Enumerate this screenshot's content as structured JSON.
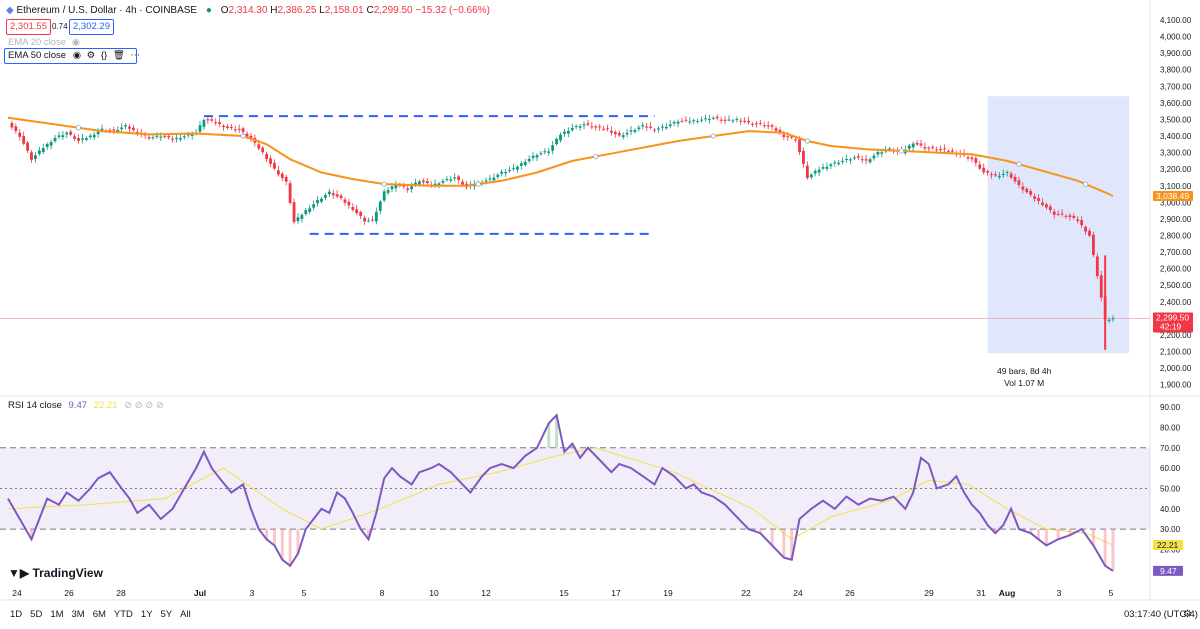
{
  "header": {
    "symbol": "Ethereum / U.S. Dollar · 4h · COINBASE",
    "ohlc": {
      "o_label": "O",
      "o": "2,314.30",
      "h_label": "H",
      "h": "2,386.25",
      "l_label": "L",
      "l": "2,158.01",
      "c_label": "C",
      "c": "2,299.50",
      "change": "−15.32 (−0.66%)"
    },
    "sell_price": "2,301.55",
    "spread": "0.74",
    "buy_price": "2,302.29"
  },
  "indicators": {
    "ema20": "EMA 20 close",
    "ema50": "EMA 50 close",
    "rsi": "RSI 14 close",
    "rsi_value": "9.47",
    "rsi_ma_value": "22.21"
  },
  "price_axis_labels": {
    "ema_last": "3,038.49",
    "last_price": "2,299.50",
    "countdown": "42:19",
    "rsi_ma": "22.21",
    "rsi": "9.47"
  },
  "measure_box": {
    "line1": "49 bars, 8d 4h",
    "line2": "Vol 1.07 M"
  },
  "footer": {
    "ranges": [
      "1D",
      "5D",
      "1M",
      "3M",
      "6M",
      "YTD",
      "1Y",
      "5Y",
      "All"
    ],
    "clock": "03:17:40 (UTC-4)",
    "brand": "TradingView"
  },
  "colors": {
    "up": "#089981",
    "down": "#f23645",
    "ema": "#f7931a",
    "rsi": "#7e57c2",
    "rsi_ma": "#f5e04a",
    "range_line": "#2962ff",
    "measure_fill": "#dbe3fd"
  },
  "chart_data": [
    {
      "type": "candlestick",
      "title": "Ethereum / U.S. Dollar · 4h · COINBASE",
      "y_ticks": [
        1900,
        2000,
        2100,
        2200,
        2300,
        2400,
        2500,
        2600,
        2700,
        2800,
        2900,
        3000,
        3100,
        3200,
        3300,
        3400,
        3500,
        3600,
        3700,
        3800,
        3900,
        4000,
        4100
      ],
      "y_tick_labels": [
        "1,900.00",
        "2,000.00",
        "2,100.00",
        "2,200.00",
        "2,300.00",
        "2,400.00",
        "2,500.00",
        "2,600.00",
        "2,700.00",
        "2,800.00",
        "2,900.00",
        "3,000.00",
        "3,100.00",
        "3,200.00",
        "3,300.00",
        "3,400.00",
        "3,500.00",
        "3,600.00",
        "3,700.00",
        "3,800.00",
        "3,900.00",
        "4,000.00",
        "4,100.00"
      ],
      "ylim": [
        1850,
        4130
      ],
      "x_tick_labels": [
        "24",
        "26",
        "28",
        "Jul",
        "3",
        "5",
        "8",
        "10",
        "12",
        "15",
        "17",
        "19",
        "22",
        "24",
        "26",
        "29",
        "31",
        "Aug",
        "3",
        "5"
      ],
      "close_path": [
        [
          0,
          3480
        ],
        [
          3,
          3400
        ],
        [
          6,
          3260
        ],
        [
          9,
          3330
        ],
        [
          12,
          3390
        ],
        [
          15,
          3420
        ],
        [
          18,
          3370
        ],
        [
          21,
          3400
        ],
        [
          24,
          3440
        ],
        [
          27,
          3430
        ],
        [
          30,
          3460
        ],
        [
          33,
          3420
        ],
        [
          36,
          3390
        ],
        [
          39,
          3400
        ],
        [
          42,
          3380
        ],
        [
          45,
          3400
        ],
        [
          48,
          3420
        ],
        [
          50,
          3500
        ],
        [
          53,
          3480
        ],
        [
          56,
          3450
        ],
        [
          59,
          3440
        ],
        [
          62,
          3380
        ],
        [
          65,
          3300
        ],
        [
          68,
          3200
        ],
        [
          71,
          3120
        ],
        [
          73,
          2880
        ],
        [
          76,
          2950
        ],
        [
          79,
          3010
        ],
        [
          82,
          3060
        ],
        [
          85,
          3020
        ],
        [
          88,
          2960
        ],
        [
          91,
          2890
        ],
        [
          93,
          2890
        ],
        [
          96,
          3060
        ],
        [
          99,
          3110
        ],
        [
          102,
          3080
        ],
        [
          105,
          3130
        ],
        [
          108,
          3100
        ],
        [
          111,
          3130
        ],
        [
          114,
          3150
        ],
        [
          117,
          3090
        ],
        [
          120,
          3120
        ],
        [
          123,
          3140
        ],
        [
          126,
          3180
        ],
        [
          129,
          3200
        ],
        [
          132,
          3250
        ],
        [
          135,
          3290
        ],
        [
          138,
          3310
        ],
        [
          141,
          3410
        ],
        [
          144,
          3450
        ],
        [
          147,
          3470
        ],
        [
          150,
          3450
        ],
        [
          153,
          3440
        ],
        [
          156,
          3400
        ],
        [
          159,
          3430
        ],
        [
          162,
          3460
        ],
        [
          165,
          3440
        ],
        [
          168,
          3460
        ],
        [
          171,
          3490
        ],
        [
          174,
          3490
        ],
        [
          177,
          3500
        ],
        [
          180,
          3510
        ],
        [
          183,
          3490
        ],
        [
          186,
          3500
        ],
        [
          189,
          3480
        ],
        [
          192,
          3470
        ],
        [
          195,
          3450
        ],
        [
          198,
          3400
        ],
        [
          201,
          3380
        ],
        [
          204,
          3150
        ],
        [
          207,
          3200
        ],
        [
          210,
          3230
        ],
        [
          213,
          3250
        ],
        [
          216,
          3270
        ],
        [
          219,
          3250
        ],
        [
          222,
          3300
        ],
        [
          225,
          3320
        ],
        [
          228,
          3300
        ],
        [
          231,
          3360
        ],
        [
          234,
          3330
        ],
        [
          237,
          3320
        ],
        [
          240,
          3310
        ],
        [
          243,
          3290
        ],
        [
          246,
          3260
        ],
        [
          249,
          3180
        ],
        [
          252,
          3160
        ],
        [
          255,
          3180
        ],
        [
          258,
          3100
        ],
        [
          261,
          3040
        ],
        [
          264,
          2990
        ],
        [
          267,
          2930
        ],
        [
          270,
          2920
        ],
        [
          273,
          2890
        ],
        [
          276,
          2800
        ],
        [
          278,
          2560
        ],
        [
          280,
          2290
        ],
        [
          282,
          2300
        ]
      ],
      "series": [
        {
          "name": "EMA 50 close",
          "points": [
            [
              0,
              3510
            ],
            [
              12,
              3470
            ],
            [
              24,
              3430
            ],
            [
              36,
              3410
            ],
            [
              48,
              3415
            ],
            [
              60,
              3400
            ],
            [
              66,
              3350
            ],
            [
              72,
              3260
            ],
            [
              80,
              3180
            ],
            [
              88,
              3140
            ],
            [
              96,
              3110
            ],
            [
              108,
              3100
            ],
            [
              117,
              3100
            ],
            [
              126,
              3130
            ],
            [
              135,
              3180
            ],
            [
              144,
              3250
            ],
            [
              153,
              3290
            ],
            [
              162,
              3330
            ],
            [
              171,
              3370
            ],
            [
              180,
              3400
            ],
            [
              189,
              3430
            ],
            [
              198,
              3420
            ],
            [
              204,
              3370
            ],
            [
              210,
              3340
            ],
            [
              219,
              3320
            ],
            [
              228,
              3310
            ],
            [
              237,
              3300
            ],
            [
              246,
              3290
            ],
            [
              255,
              3250
            ],
            [
              264,
              3190
            ],
            [
              273,
              3130
            ],
            [
              280,
              3060
            ],
            [
              282,
              3038
            ]
          ]
        }
      ],
      "annotations": {
        "upper_range_line": 3520,
        "lower_range_line": 2810,
        "measure_y_top": 3640,
        "measure_y_bottom": 2090
      }
    },
    {
      "type": "line",
      "title": "RSI 14 close",
      "y_ticks": [
        10,
        20,
        30,
        40,
        50,
        60,
        70,
        80,
        90
      ],
      "y_tick_labels": [
        "10.00",
        "20.00",
        "30.00",
        "40.00",
        "50.00",
        "60.00",
        "70.00",
        "80.00",
        "90.00"
      ],
      "ylim": [
        5,
        92
      ],
      "bands": {
        "upper": 70,
        "middle": 50,
        "lower": 30
      },
      "series": [
        {
          "name": "RSI 14 close",
          "points": [
            [
              0,
              45
            ],
            [
              3,
              35
            ],
            [
              6,
              25
            ],
            [
              8,
              35
            ],
            [
              10,
              45
            ],
            [
              13,
              42
            ],
            [
              15,
              48
            ],
            [
              18,
              44
            ],
            [
              21,
              50
            ],
            [
              23,
              55
            ],
            [
              26,
              58
            ],
            [
              29,
              50
            ],
            [
              31,
              45
            ],
            [
              33,
              38
            ],
            [
              36,
              42
            ],
            [
              39,
              35
            ],
            [
              42,
              40
            ],
            [
              45,
              50
            ],
            [
              48,
              60
            ],
            [
              50,
              68
            ],
            [
              52,
              60
            ],
            [
              54,
              55
            ],
            [
              57,
              48
            ],
            [
              60,
              52
            ],
            [
              62,
              40
            ],
            [
              64,
              30
            ],
            [
              66,
              25
            ],
            [
              68,
              22
            ],
            [
              70,
              15
            ],
            [
              72,
              12
            ],
            [
              74,
              18
            ],
            [
              76,
              30
            ],
            [
              78,
              35
            ],
            [
              80,
              40
            ],
            [
              82,
              38
            ],
            [
              84,
              48
            ],
            [
              86,
              45
            ],
            [
              88,
              38
            ],
            [
              90,
              30
            ],
            [
              92,
              25
            ],
            [
              94,
              38
            ],
            [
              96,
              55
            ],
            [
              98,
              60
            ],
            [
              100,
              56
            ],
            [
              103,
              52
            ],
            [
              105,
              58
            ],
            [
              108,
              60
            ],
            [
              110,
              62
            ],
            [
              113,
              58
            ],
            [
              116,
              52
            ],
            [
              118,
              48
            ],
            [
              121,
              56
            ],
            [
              123,
              60
            ],
            [
              126,
              62
            ],
            [
              129,
              60
            ],
            [
              132,
              66
            ],
            [
              135,
              70
            ],
            [
              138,
              82
            ],
            [
              140,
              86
            ],
            [
              142,
              68
            ],
            [
              144,
              72
            ],
            [
              146,
              65
            ],
            [
              148,
              70
            ],
            [
              151,
              64
            ],
            [
              154,
              58
            ],
            [
              156,
              62
            ],
            [
              159,
              60
            ],
            [
              162,
              56
            ],
            [
              165,
              52
            ],
            [
              167,
              60
            ],
            [
              170,
              56
            ],
            [
              173,
              50
            ],
            [
              175,
              52
            ],
            [
              177,
              48
            ],
            [
              180,
              46
            ],
            [
              183,
              42
            ],
            [
              186,
              36
            ],
            [
              189,
              30
            ],
            [
              192,
              28
            ],
            [
              195,
              22
            ],
            [
              198,
              16
            ],
            [
              200,
              15
            ],
            [
              202,
              35
            ],
            [
              205,
              40
            ],
            [
              208,
              44
            ],
            [
              211,
              40
            ],
            [
              214,
              46
            ],
            [
              217,
              42
            ],
            [
              220,
              45
            ],
            [
              223,
              44
            ],
            [
              226,
              46
            ],
            [
              229,
              40
            ],
            [
              231,
              48
            ],
            [
              233,
              65
            ],
            [
              235,
              62
            ],
            [
              237,
              50
            ],
            [
              240,
              52
            ],
            [
              242,
              56
            ],
            [
              244,
              48
            ],
            [
              246,
              42
            ],
            [
              248,
              38
            ],
            [
              250,
              32
            ],
            [
              252,
              28
            ],
            [
              254,
              32
            ],
            [
              256,
              40
            ],
            [
              258,
              30
            ],
            [
              261,
              28
            ],
            [
              263,
              25
            ],
            [
              265,
              22
            ],
            [
              268,
              25
            ],
            [
              271,
              27
            ],
            [
              274,
              30
            ],
            [
              277,
              22
            ],
            [
              280,
              12
            ],
            [
              282,
              9.47
            ]
          ]
        },
        {
          "name": "RSI-based MA",
          "points": [
            [
              0,
              40
            ],
            [
              20,
              42
            ],
            [
              40,
              45
            ],
            [
              55,
              60
            ],
            [
              70,
              40
            ],
            [
              80,
              30
            ],
            [
              95,
              40
            ],
            [
              110,
              52
            ],
            [
              125,
              58
            ],
            [
              140,
              66
            ],
            [
              150,
              70
            ],
            [
              170,
              58
            ],
            [
              190,
              40
            ],
            [
              200,
              25
            ],
            [
              210,
              36
            ],
            [
              225,
              44
            ],
            [
              235,
              54
            ],
            [
              245,
              52
            ],
            [
              255,
              40
            ],
            [
              265,
              30
            ],
            [
              275,
              28
            ],
            [
              282,
              22.21
            ]
          ]
        }
      ]
    }
  ]
}
